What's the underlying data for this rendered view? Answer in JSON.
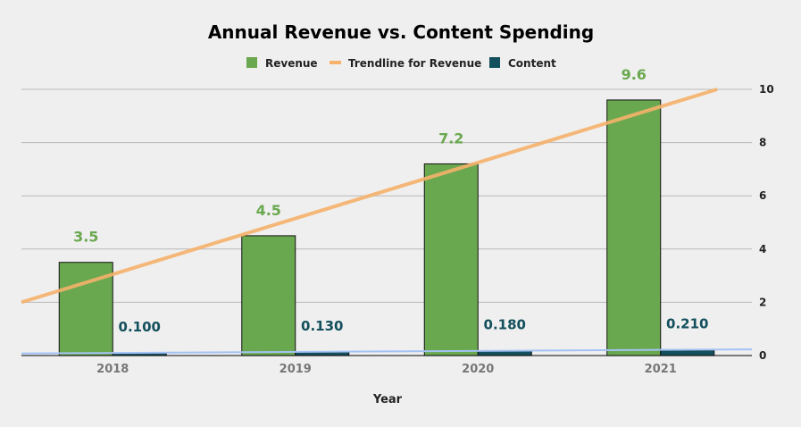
{
  "chart_data": {
    "type": "bar",
    "title": "Annual Revenue vs. Content Spending",
    "xlabel": "Year",
    "ylabel": "",
    "categories": [
      "2018",
      "2019",
      "2020",
      "2021"
    ],
    "ylim": [
      0,
      10
    ],
    "yticks": [
      0,
      2,
      4,
      6,
      8,
      10
    ],
    "y_axis_side": "right",
    "grid": true,
    "legend_position": "top",
    "series": [
      {
        "name": "Revenue",
        "values": [
          3.5,
          4.5,
          7.2,
          9.6
        ],
        "labels": [
          "3.5",
          "4.5",
          "7.2",
          "9.6"
        ],
        "color": "#6aa84f",
        "label_color": "#6aa84f"
      },
      {
        "name": "Content",
        "values": [
          0.1,
          0.13,
          0.18,
          0.21
        ],
        "labels": [
          "0.100",
          "0.130",
          "0.180",
          "0.210"
        ],
        "color": "#134f5c",
        "label_color": "#134f5c"
      }
    ],
    "trendlines": [
      {
        "name": "Trendline for Revenue",
        "series": "Revenue",
        "type": "linear",
        "color": "#f6b26b",
        "in_legend": true
      },
      {
        "series": "Content",
        "type": "linear",
        "color": "#a4c2f4",
        "in_legend": false
      }
    ]
  }
}
